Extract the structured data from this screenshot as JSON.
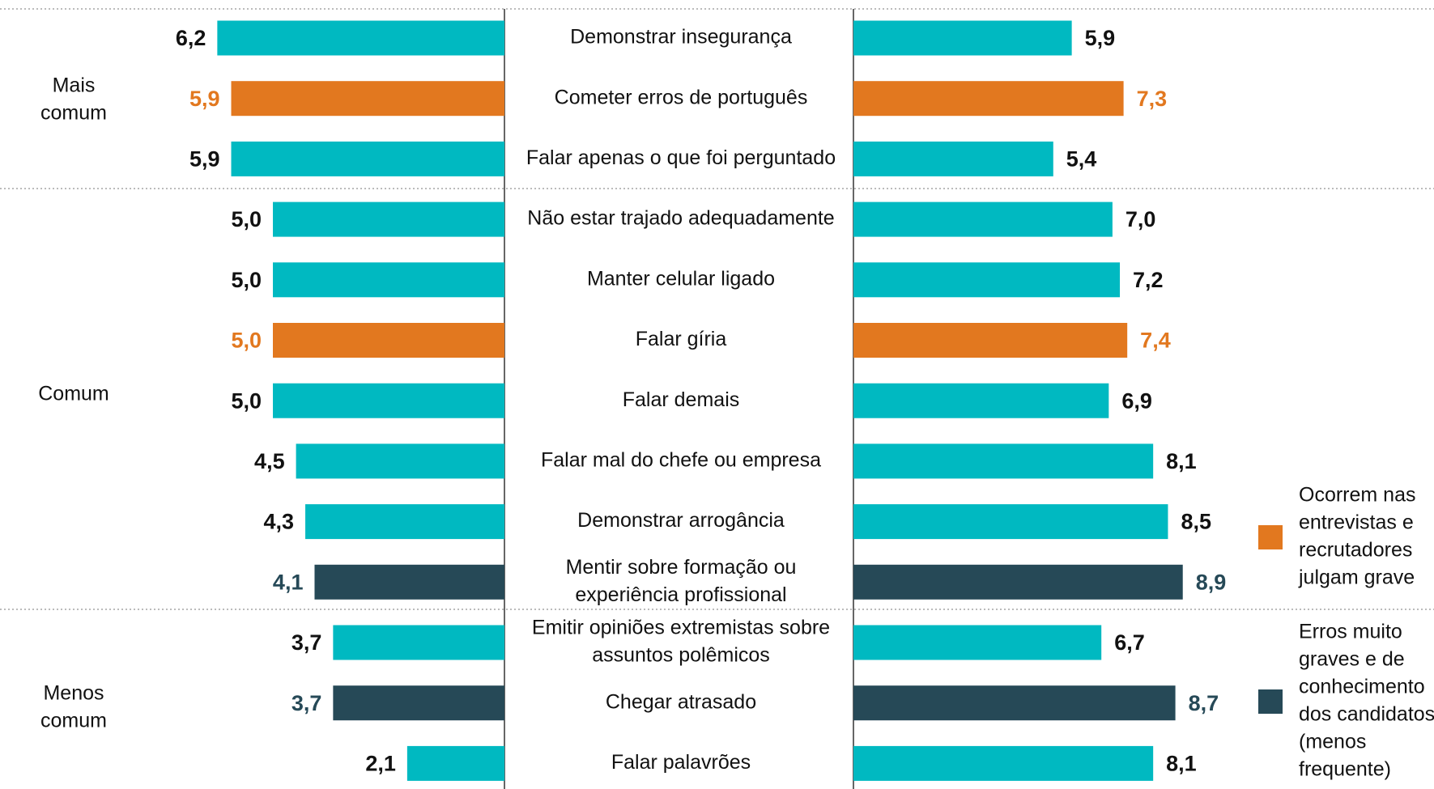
{
  "chart_data": {
    "type": "butterfly",
    "categories": [
      [
        "Demonstrar insegurança"
      ],
      [
        "Cometer erros de português"
      ],
      [
        "Falar apenas o que foi perguntado"
      ],
      [
        "Não estar trajado adequadamente"
      ],
      [
        "Manter celular ligado"
      ],
      [
        "Falar gíria"
      ],
      [
        "Falar demais"
      ],
      [
        "Falar mal do chefe ou empresa"
      ],
      [
        "Demonstrar arrogância"
      ],
      [
        "Mentir sobre formação ou",
        "experiência profissional"
      ],
      [
        "Emitir opiniões extremistas sobre",
        "assuntos polêmicos"
      ],
      [
        "Chegar atrasado"
      ],
      [
        "Falar palavrões"
      ]
    ],
    "colors": [
      "#00b9c1",
      "#e2781f",
      "#00b9c1",
      "#00b9c1",
      "#00b9c1",
      "#e2781f",
      "#00b9c1",
      "#00b9c1",
      "#00b9c1",
      "#264957",
      "#00b9c1",
      "#264957",
      "#00b9c1"
    ],
    "series": [
      {
        "values": [
          6.2,
          5.9,
          5.9,
          5.0,
          5.0,
          5.0,
          5.0,
          4.5,
          4.3,
          4.1,
          3.7,
          3.7,
          2.1
        ],
        "value_labels": [
          "6,2",
          "5,9",
          "5,9",
          "5,0",
          "5,0",
          "5,0",
          "5,0",
          "4,5",
          "4,3",
          "4,1",
          "3,7",
          "3,7",
          "2,1"
        ]
      },
      {
        "values": [
          5.9,
          7.3,
          5.4,
          7.0,
          7.2,
          7.4,
          6.9,
          8.1,
          8.5,
          8.9,
          6.7,
          8.7,
          8.1
        ],
        "value_labels": [
          "5,9",
          "7,3",
          "5,4",
          "7,0",
          "7,2",
          "7,4",
          "6,9",
          "8,1",
          "8,5",
          "8,9",
          "6,7",
          "8,7",
          "8,1"
        ]
      }
    ],
    "groups": [
      [
        "Mais",
        "comum"
      ],
      [
        "Comum"
      ],
      [
        "Menos",
        "comum"
      ]
    ],
    "legend": [
      {
        "color": "#e2781f",
        "label": [
          "Ocorrem nas",
          "entrevistas e",
          "recrutadores",
          "julgam grave"
        ]
      },
      {
        "color": "#264957",
        "label": [
          "Erros muito",
          "graves e de",
          "conhecimento",
          "dos candidatos",
          "(menos",
          "frequente)"
        ]
      }
    ]
  }
}
